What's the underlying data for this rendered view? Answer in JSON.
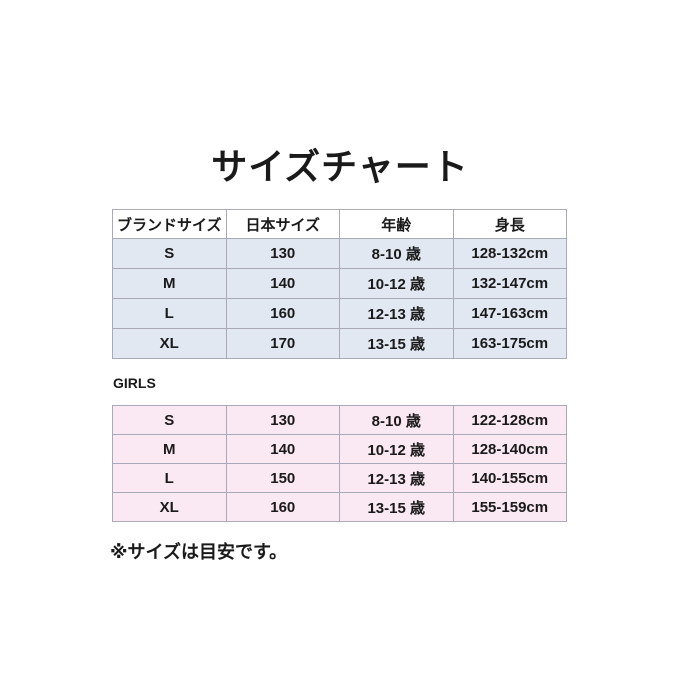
{
  "title": "サイズチャート",
  "colors": {
    "boys_row_bg": "#e1e8f2",
    "girls_row_bg": "#fae8f2",
    "border": "#a9a9b8"
  },
  "table1": {
    "headers": [
      "ブランドサイズ",
      "日本サイズ",
      "年齢",
      "身長"
    ],
    "rows": [
      [
        "S",
        "130",
        "8-10 歳",
        "128-132cm"
      ],
      [
        "M",
        "140",
        "10-12 歳",
        "132-147cm"
      ],
      [
        "L",
        "160",
        "12-13 歳",
        "147-163cm"
      ],
      [
        "XL",
        "170",
        "13-15 歳",
        "163-175cm"
      ]
    ]
  },
  "girls_label": "GIRLS",
  "table2": {
    "rows": [
      [
        "S",
        "130",
        "8-10 歳",
        "122-128cm"
      ],
      [
        "M",
        "140",
        "10-12 歳",
        "128-140cm"
      ],
      [
        "L",
        "150",
        "12-13 歳",
        "140-155cm"
      ],
      [
        "XL",
        "160",
        "13-15 歳",
        "155-159cm"
      ]
    ]
  },
  "note": "※サイズは目安です。"
}
